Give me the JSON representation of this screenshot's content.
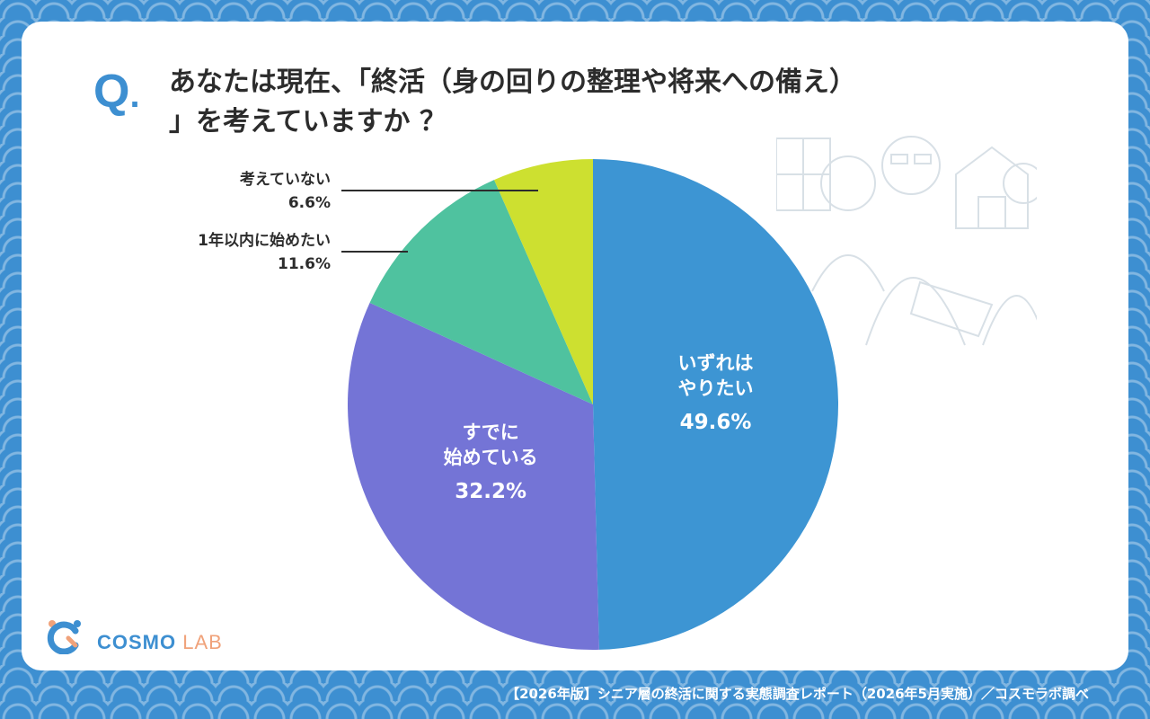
{
  "question": {
    "mark": "Q",
    "dot": ".",
    "line1": "あなたは現在、「終活（身の回りの整理や将来への備え）",
    "line2": "」を考えていますか ？"
  },
  "chart_data": {
    "type": "pie",
    "title": "あなたは現在、「終活（身の回りの整理や将来への備え）」を考えていますか ？",
    "start": "12 o'clock",
    "direction": "clockwise",
    "slices": [
      {
        "label_lines": [
          "いずれは",
          "やりたい"
        ],
        "value": 49.6,
        "value_text": "49.6%",
        "color": "#3d95d3"
      },
      {
        "label_lines": [
          "すでに",
          "始めている"
        ],
        "value": 32.2,
        "value_text": "32.2%",
        "color": "#7474d6"
      },
      {
        "label_lines": [
          "1年以内に始めたい"
        ],
        "value": 11.6,
        "value_text": "11.6%",
        "color": "#4fc29f"
      },
      {
        "label_lines": [
          "考えていない"
        ],
        "value": 6.6,
        "value_text": "6.6%",
        "color": "#cde030"
      }
    ]
  },
  "logo": {
    "cosmo": "COSMO",
    "lab": "LAB"
  },
  "footer": "【2026年版】シニア層の終活に関する実態調査レポート（2026年5月実施）／コスモラボ調べ",
  "colors": {
    "accent": "#3d8fd1",
    "text": "#2c2c2c",
    "card": "#ffffff"
  }
}
